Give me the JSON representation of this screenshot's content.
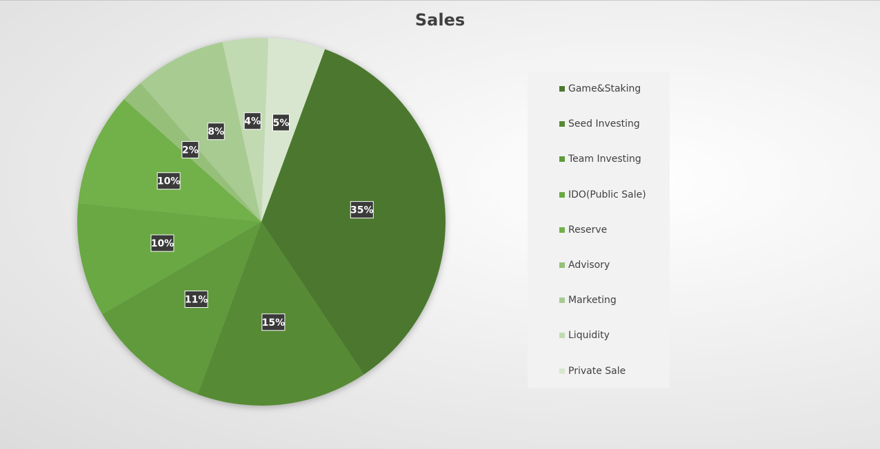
{
  "chart_data": {
    "type": "pie",
    "title": "Sales",
    "legend_position": "right",
    "slices": [
      {
        "name": "Game&Staking",
        "value": 35,
        "label": "35%",
        "color": "#4c782e"
      },
      {
        "name": "Seed Investing",
        "value": 15,
        "label": "15%",
        "color": "#568a35"
      },
      {
        "name": "Team Investing",
        "value": 11,
        "label": "11%",
        "color": "#609a3c"
      },
      {
        "name": "IDO(Public Sale)",
        "value": 10,
        "label": "10%",
        "color": "#69a843"
      },
      {
        "name": "Reserve",
        "value": 10,
        "label": "10%",
        "color": "#72b04a"
      },
      {
        "name": "Advisory",
        "value": 2,
        "label": "2%",
        "color": "#96c07a"
      },
      {
        "name": "Marketing",
        "value": 8,
        "label": "8%",
        "color": "#a8cb92"
      },
      {
        "name": "Liquidity",
        "value": 4,
        "label": "4%",
        "color": "#c2dab2"
      },
      {
        "name": "Private Sale",
        "value": 5,
        "label": "5%",
        "color": "#d8e6cf"
      }
    ]
  }
}
